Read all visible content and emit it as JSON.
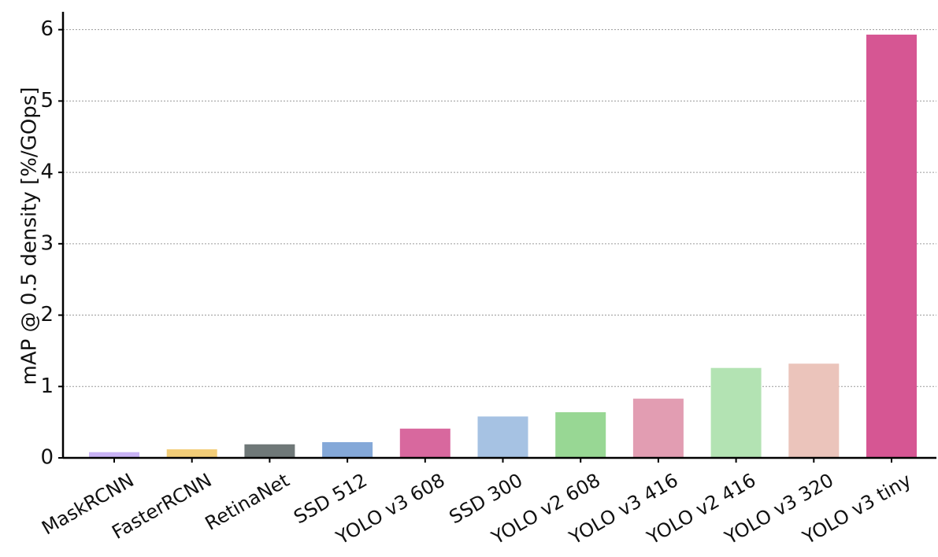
{
  "chart_data": {
    "type": "bar",
    "title": "",
    "xlabel": "",
    "ylabel": "mAP @ 0.5 density [%/GOps]",
    "ylim": [
      0,
      6.25
    ],
    "yticks": [
      0,
      1,
      2,
      3,
      4,
      5,
      6
    ],
    "grid": "horizontal dotted",
    "legend": "none",
    "categories": [
      "MaskRCNN",
      "FasterRCNN",
      "RetinaNet",
      "SSD 512",
      "YOLO v3 608",
      "SSD 300",
      "YOLO v2 608",
      "YOLO v3 416",
      "YOLO v2 416",
      "YOLO v3 320",
      "YOLO v3 tiny"
    ],
    "values": [
      0.08,
      0.12,
      0.19,
      0.22,
      0.41,
      0.58,
      0.64,
      0.83,
      1.26,
      1.32,
      5.93
    ],
    "colors": [
      "#c9b3f5",
      "#f2cd78",
      "#6f7878",
      "#84a8d8",
      "#d8689e",
      "#a6c2e3",
      "#98d794",
      "#e29db2",
      "#b3e3b3",
      "#ebc4bb",
      "#d65693"
    ]
  }
}
